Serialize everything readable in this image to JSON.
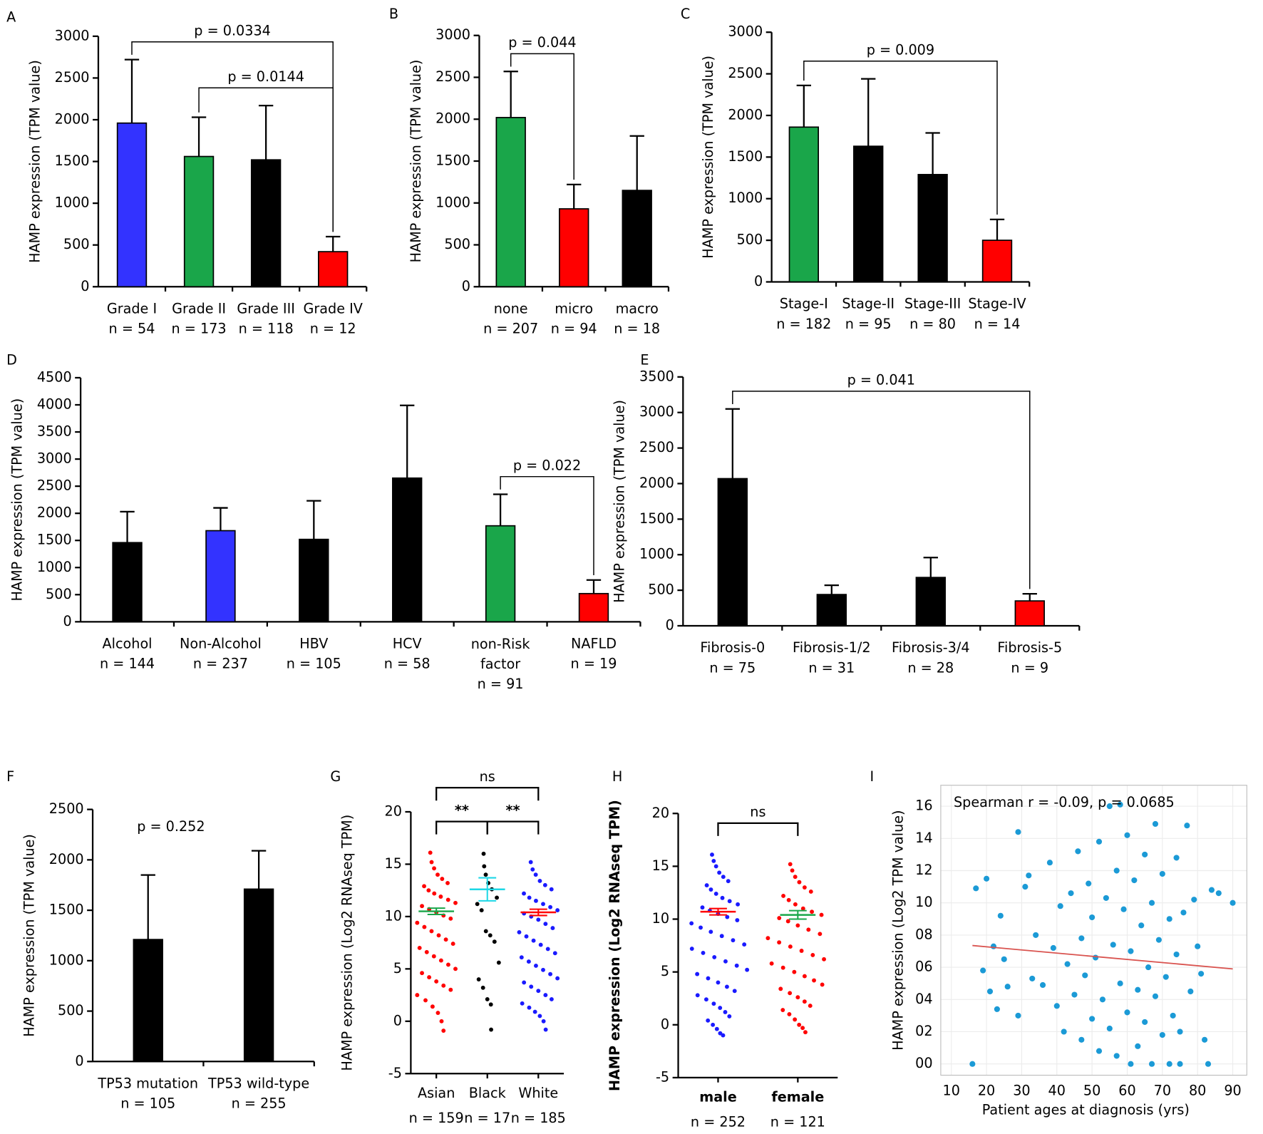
{
  "chart_data": [
    {
      "type": "bar",
      "panel": "A",
      "ylabel": "HAMP expression (TPM value)",
      "categories": [
        "Grade I",
        "Grade II",
        "Grade III",
        "Grade IV"
      ],
      "n_labels": [
        "n = 54",
        "n = 173",
        "n = 118",
        "n = 12"
      ],
      "values": [
        1960,
        1560,
        1520,
        420
      ],
      "errors": [
        760,
        470,
        650,
        180
      ],
      "colors": [
        "#3333ff",
        "#1aa64a",
        "#000000",
        "#ff0000"
      ],
      "ylim": [
        0,
        3000
      ],
      "yticks": [
        0,
        500,
        1000,
        1500,
        2000,
        2500,
        3000
      ],
      "brackets": [
        {
          "label": "p = 0.0334",
          "between": [
            0,
            3
          ]
        },
        {
          "label": "p = 0.0144",
          "between": [
            1,
            3
          ]
        }
      ]
    },
    {
      "type": "bar",
      "panel": "B",
      "ylabel": "HAMP expression (TPM value)",
      "categories": [
        "none",
        "micro",
        "macro"
      ],
      "n_labels": [
        "n = 207",
        "n = 94",
        "n = 18"
      ],
      "values": [
        2020,
        930,
        1150
      ],
      "errors": [
        550,
        290,
        650
      ],
      "colors": [
        "#1aa64a",
        "#ff0000",
        "#000000"
      ],
      "ylim": [
        0,
        3000
      ],
      "yticks": [
        0,
        500,
        1000,
        1500,
        2000,
        2500,
        3000
      ],
      "brackets": [
        {
          "label": "p = 0.044",
          "between": [
            0,
            1
          ]
        }
      ]
    },
    {
      "type": "bar",
      "panel": "C",
      "ylabel": "HAMP expression (TPM value)",
      "categories": [
        "Stage-I",
        "Stage-II",
        "Stage-III",
        "Stage-IV"
      ],
      "n_labels": [
        "n = 182",
        "n = 95",
        "n = 80",
        "n = 14"
      ],
      "values": [
        1860,
        1630,
        1290,
        500
      ],
      "errors": [
        500,
        810,
        500,
        250
      ],
      "colors": [
        "#1aa64a",
        "#000000",
        "#000000",
        "#ff0000"
      ],
      "ylim": [
        0,
        3000
      ],
      "yticks": [
        0,
        500,
        1000,
        1500,
        2000,
        2500,
        3000
      ],
      "brackets": [
        {
          "label": "p = 0.009",
          "between": [
            0,
            3
          ]
        }
      ]
    },
    {
      "type": "bar",
      "panel": "D",
      "ylabel": "HAMP expression (TPM value)",
      "categories": [
        "Alcohol",
        "Non-Alcohol",
        "HBV",
        "HCV",
        "non-Risk factor",
        "NAFLD"
      ],
      "n_labels": [
        "n = 144",
        "n = 237",
        "n = 105",
        "n = 58",
        "n = 91",
        "n = 19"
      ],
      "values": [
        1460,
        1680,
        1520,
        2650,
        1770,
        520
      ],
      "errors": [
        570,
        420,
        710,
        1340,
        580,
        250
      ],
      "colors": [
        "#000000",
        "#3333ff",
        "#000000",
        "#000000",
        "#1aa64a",
        "#ff0000"
      ],
      "ylim": [
        0,
        4500
      ],
      "yticks": [
        0,
        500,
        1000,
        1500,
        2000,
        2500,
        3000,
        3500,
        4000,
        4500
      ],
      "brackets": [
        {
          "label": "p = 0.022",
          "between": [
            4,
            5
          ]
        }
      ]
    },
    {
      "type": "bar",
      "panel": "E",
      "ylabel": "HAMP expression (TPM value)",
      "categories": [
        "Fibrosis-0",
        "Fibrosis-1/2",
        "Fibrosis-3/4",
        "Fibrosis-5"
      ],
      "n_labels": [
        "n = 75",
        "n = 31",
        "n = 28",
        "n = 9"
      ],
      "values": [
        2070,
        440,
        680,
        350
      ],
      "errors": [
        980,
        130,
        280,
        100
      ],
      "colors": [
        "#000000",
        "#000000",
        "#000000",
        "#ff0000"
      ],
      "ylim": [
        0,
        3500
      ],
      "yticks": [
        0,
        500,
        1000,
        1500,
        2000,
        2500,
        3000,
        3500
      ],
      "brackets": [
        {
          "label": "p = 0.041",
          "between": [
            0,
            3
          ]
        }
      ]
    },
    {
      "type": "bar",
      "panel": "F",
      "ylabel": "HAMP expression (TPM value)",
      "categories": [
        "TP53 mutation",
        "TP53 wild-type"
      ],
      "n_labels": [
        "n = 105",
        "n = 255"
      ],
      "values": [
        1210,
        1710
      ],
      "errors": [
        640,
        380
      ],
      "colors": [
        "#000000",
        "#000000"
      ],
      "ylim": [
        0,
        2500
      ],
      "yticks": [
        0,
        500,
        1000,
        1500,
        2000,
        2500
      ],
      "annotations": [
        "p = 0.252"
      ],
      "brackets": []
    },
    {
      "type": "strip",
      "panel": "G",
      "ylabel": "HAMP expression (Log2 RNAseq TPM)",
      "categories": [
        "Asian",
        "Black",
        "White"
      ],
      "n_labels": [
        "n = 159",
        "n = 17",
        "n = 185"
      ],
      "groups": [
        {
          "color": "#ff0000",
          "mean_color": "#1aa64a",
          "mean": 10.5,
          "sem": 0.3,
          "points": [
            16.1,
            15.2,
            14.6,
            14.0,
            13.6,
            13.2,
            12.9,
            12.5,
            12.2,
            11.9,
            11.6,
            11.3,
            11.0,
            10.7,
            10.4,
            10.1,
            9.8,
            9.4,
            9.0,
            8.6,
            8.2,
            7.8,
            7.4,
            7.0,
            6.6,
            6.2,
            5.8,
            5.4,
            5.0,
            4.6,
            4.2,
            3.8,
            3.4,
            3.0,
            2.5,
            2.0,
            1.4,
            0.8,
            0.0,
            -0.9
          ]
        },
        {
          "color": "#000000",
          "mean_color": "#1ed7e6",
          "mean": 12.6,
          "sem": 1.1,
          "points": [
            16.0,
            14.8,
            14.0,
            13.2,
            12.6,
            11.8,
            11.2,
            10.6,
            8.6,
            8.2,
            7.6,
            5.6,
            4.0,
            3.2,
            2.1,
            1.6,
            -0.8
          ]
        },
        {
          "color": "#1a1aff",
          "mean_color": "#ff0000",
          "mean": 10.4,
          "sem": 0.3,
          "points": [
            15.2,
            14.5,
            14.0,
            13.4,
            13.0,
            12.6,
            12.2,
            11.8,
            11.5,
            11.2,
            10.9,
            10.6,
            10.3,
            10.0,
            9.7,
            9.3,
            8.9,
            8.5,
            8.1,
            7.7,
            7.3,
            6.9,
            6.5,
            6.1,
            5.7,
            5.3,
            4.9,
            4.5,
            4.1,
            3.7,
            3.3,
            2.9,
            2.5,
            2.1,
            1.7,
            1.3,
            0.9,
            0.5,
            0.0,
            -0.8
          ]
        }
      ],
      "ylim": [
        -5,
        20
      ],
      "yticks": [
        -5,
        0,
        5,
        10,
        15,
        20
      ],
      "brackets": [
        {
          "label": "**",
          "between": [
            0,
            1
          ]
        },
        {
          "label": "**",
          "between": [
            1,
            2
          ]
        },
        {
          "label": "ns",
          "between": [
            0,
            2
          ]
        }
      ]
    },
    {
      "type": "strip",
      "panel": "H",
      "ylabel": "HAMP expression (Log2 RNAseq TPM)",
      "bold": true,
      "categories": [
        "male",
        "female"
      ],
      "n_labels": [
        "n = 252",
        "n = 121"
      ],
      "groups": [
        {
          "color": "#1a1aff",
          "mean_color": "#ff0000",
          "mean": 10.7,
          "sem": 0.3,
          "points": [
            16.1,
            15.5,
            15.0,
            14.4,
            14.0,
            13.6,
            13.2,
            12.8,
            12.4,
            12.0,
            11.7,
            11.4,
            11.1,
            10.8,
            10.5,
            10.2,
            9.9,
            9.6,
            9.2,
            8.8,
            8.4,
            8.0,
            7.6,
            7.2,
            6.8,
            6.4,
            6.0,
            5.6,
            5.2,
            4.8,
            4.4,
            4.0,
            3.6,
            3.2,
            2.8,
            2.4,
            2.0,
            1.6,
            1.2,
            0.8,
            0.4,
            0.0,
            -0.4,
            -0.8,
            -1.0
          ]
        },
        {
          "color": "#ff0000",
          "mean_color": "#1aa64a",
          "mean": 10.4,
          "sem": 0.4,
          "points": [
            15.2,
            14.6,
            14.0,
            13.5,
            13.0,
            12.6,
            12.2,
            11.8,
            11.4,
            11.0,
            10.7,
            10.4,
            10.1,
            9.8,
            9.4,
            9.0,
            8.6,
            8.2,
            7.8,
            7.4,
            7.0,
            6.6,
            6.2,
            5.8,
            5.4,
            5.0,
            4.6,
            4.2,
            3.8,
            3.4,
            3.0,
            2.6,
            2.2,
            1.8,
            1.4,
            1.0,
            0.5,
            0.0,
            -0.3,
            -0.7
          ]
        }
      ],
      "ylim": [
        -5,
        20
      ],
      "yticks": [
        -5,
        0,
        5,
        10,
        15,
        20
      ],
      "brackets": [
        {
          "label": "ns",
          "between": [
            0,
            1
          ]
        }
      ]
    },
    {
      "type": "scatter",
      "panel": "I",
      "title": "Spearman r = -0.09, p = 0.0685",
      "xlabel": "Patient ages at diagnosis (yrs)",
      "ylabel": "HAMP expression (Log2 TPM value)",
      "color": "#1b9ad6",
      "trend_color": "#d9534f",
      "grid": true,
      "x": [
        16,
        17,
        19,
        20,
        21,
        22,
        23,
        24,
        25,
        26,
        29,
        29,
        31,
        32,
        33,
        34,
        36,
        38,
        39,
        40,
        41,
        42,
        43,
        44,
        45,
        46,
        47,
        47,
        48,
        49,
        50,
        50,
        51,
        52,
        52,
        53,
        54,
        55,
        55,
        56,
        57,
        57,
        58,
        58,
        59,
        60,
        60,
        61,
        61,
        62,
        63,
        63,
        64,
        65,
        65,
        66,
        67,
        67,
        68,
        68,
        69,
        70,
        70,
        71,
        72,
        72,
        73,
        74,
        74,
        75,
        75,
        76,
        77,
        78,
        79,
        80,
        81,
        82,
        83,
        84,
        86,
        90
      ],
      "y": [
        0,
        10.9,
        5.8,
        11.5,
        4.5,
        7.3,
        3.4,
        9.2,
        6.5,
        4.8,
        14.4,
        3.0,
        11.0,
        11.7,
        5.3,
        8.0,
        4.9,
        12.5,
        7.2,
        3.6,
        9.8,
        2.0,
        6.2,
        10.6,
        4.3,
        13.2,
        1.5,
        7.8,
        5.5,
        11.2,
        2.8,
        9.1,
        6.6,
        0.8,
        13.8,
        4.0,
        10.3,
        16.0,
        2.2,
        7.4,
        12.0,
        0.5,
        5.0,
        16.1,
        9.6,
        3.2,
        14.2,
        0,
        7.0,
        11.4,
        4.6,
        1.1,
        8.6,
        13.0,
        2.6,
        6.0,
        10.0,
        0,
        14.9,
        4.2,
        7.7,
        1.8,
        11.8,
        5.4,
        9.0,
        0,
        3.0,
        12.8,
        6.8,
        0,
        2.0,
        9.4,
        14.8,
        4.5,
        10.2,
        7.3,
        5.6,
        1.5,
        0,
        10.8,
        10.6,
        10.0
      ],
      "trend": {
        "x": [
          16,
          90
        ],
        "y": [
          7.35,
          5.9
        ]
      },
      "xlim": [
        7,
        94
      ],
      "xticks": [
        10,
        20,
        30,
        40,
        50,
        60,
        70,
        80,
        90
      ],
      "ylim": [
        -0.7,
        17.3
      ],
      "yticks": [
        {
          "value": 0,
          "label": "00"
        },
        {
          "value": 2,
          "label": "02"
        },
        {
          "value": 4,
          "label": "04"
        },
        {
          "value": 6,
          "label": "06"
        },
        {
          "value": 8,
          "label": "08"
        },
        10,
        12,
        14,
        16
      ]
    }
  ]
}
